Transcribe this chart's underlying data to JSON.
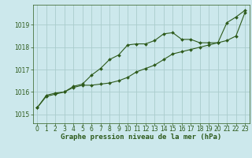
{
  "background_color": "#cce8ec",
  "grid_color": "#aacccc",
  "line_color": "#2d5a1b",
  "marker_color": "#2d5a1b",
  "title": "Graphe pression niveau de la mer (hPa)",
  "xlim": [
    -0.5,
    23.5
  ],
  "ylim": [
    1014.6,
    1019.9
  ],
  "yticks": [
    1015,
    1016,
    1017,
    1018,
    1019
  ],
  "xticks": [
    0,
    1,
    2,
    3,
    4,
    5,
    6,
    7,
    8,
    9,
    10,
    11,
    12,
    13,
    14,
    15,
    16,
    17,
    18,
    19,
    20,
    21,
    22,
    23
  ],
  "series1_x": [
    0,
    1,
    2,
    3,
    4,
    5,
    6,
    7,
    8,
    9,
    10,
    11,
    12,
    13,
    14,
    15,
    16,
    17,
    18,
    19,
    20,
    21,
    22,
    23
  ],
  "series1_y": [
    1015.3,
    1015.8,
    1015.9,
    1016.0,
    1016.2,
    1016.3,
    1016.3,
    1016.35,
    1016.4,
    1016.5,
    1016.65,
    1016.9,
    1017.05,
    1017.2,
    1017.45,
    1017.7,
    1017.8,
    1017.9,
    1018.0,
    1018.1,
    1018.2,
    1018.3,
    1018.5,
    1019.55
  ],
  "series2_x": [
    0,
    1,
    2,
    3,
    4,
    5,
    6,
    7,
    8,
    9,
    10,
    11,
    12,
    13,
    14,
    15,
    16,
    17,
    18,
    19,
    20,
    21,
    22,
    23
  ],
  "series2_y": [
    1015.3,
    1015.85,
    1015.95,
    1016.0,
    1016.25,
    1016.35,
    1016.75,
    1017.05,
    1017.45,
    1017.65,
    1018.1,
    1018.15,
    1018.15,
    1018.3,
    1018.6,
    1018.65,
    1018.35,
    1018.35,
    1018.2,
    1018.2,
    1018.2,
    1019.1,
    1019.35,
    1019.65
  ],
  "tick_fontsize": 5.5,
  "label_fontsize": 6.5,
  "line_width": 0.8,
  "marker_size": 2.0
}
